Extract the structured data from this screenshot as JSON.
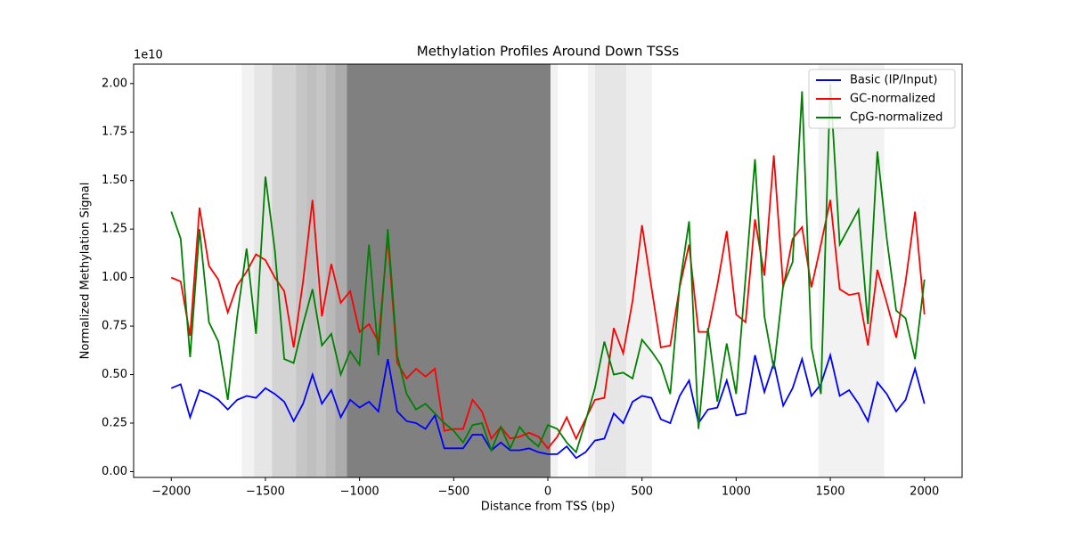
{
  "chart_data": {
    "type": "line",
    "title": "Methylation Profiles Around Down TSSs",
    "xlabel": "Distance from TSS (bp)",
    "ylabel": "Normalized Methylation Signal",
    "y_offset_label": "1e10",
    "x": [
      -2000,
      -1950,
      -1900,
      -1850,
      -1800,
      -1750,
      -1700,
      -1650,
      -1600,
      -1550,
      -1500,
      -1450,
      -1400,
      -1350,
      -1300,
      -1250,
      -1200,
      -1150,
      -1100,
      -1050,
      -1000,
      -950,
      -900,
      -850,
      -800,
      -750,
      -700,
      -650,
      -600,
      -550,
      -500,
      -450,
      -400,
      -350,
      -300,
      -250,
      -200,
      -150,
      -100,
      -50,
      0,
      50,
      100,
      150,
      200,
      250,
      300,
      350,
      400,
      450,
      500,
      550,
      600,
      650,
      700,
      750,
      800,
      850,
      900,
      950,
      1000,
      1050,
      1100,
      1150,
      1200,
      1250,
      1300,
      1350,
      1400,
      1450,
      1500,
      1550,
      1600,
      1650,
      1700,
      1750,
      1800,
      1850,
      1900,
      1950,
      2000
    ],
    "series": [
      {
        "name": "Basic (IP/Input)",
        "color": "#0000ff",
        "values": [
          0.43,
          0.45,
          0.28,
          0.42,
          0.4,
          0.37,
          0.32,
          0.37,
          0.39,
          0.38,
          0.43,
          0.4,
          0.36,
          0.26,
          0.35,
          0.5,
          0.35,
          0.42,
          0.28,
          0.37,
          0.33,
          0.36,
          0.31,
          0.58,
          0.31,
          0.26,
          0.25,
          0.22,
          0.29,
          0.12,
          0.12,
          0.12,
          0.19,
          0.19,
          0.11,
          0.15,
          0.11,
          0.11,
          0.12,
          0.1,
          0.09,
          0.09,
          0.13,
          0.07,
          0.1,
          0.16,
          0.17,
          0.3,
          0.25,
          0.36,
          0.39,
          0.38,
          0.27,
          0.25,
          0.39,
          0.47,
          0.25,
          0.32,
          0.33,
          0.47,
          0.29,
          0.3,
          0.6,
          0.41,
          0.56,
          0.34,
          0.43,
          0.58,
          0.39,
          0.45,
          0.6,
          0.39,
          0.42,
          0.35,
          0.26,
          0.46,
          0.4,
          0.31,
          0.37,
          0.53,
          0.35
        ]
      },
      {
        "name": "GC-normalized",
        "color": "#ff0000",
        "values": [
          1.0,
          0.98,
          0.7,
          1.36,
          1.06,
          0.99,
          0.82,
          0.96,
          1.03,
          1.12,
          1.09,
          1.0,
          0.93,
          0.64,
          0.98,
          1.4,
          0.8,
          1.07,
          0.87,
          0.93,
          0.72,
          0.76,
          0.67,
          1.21,
          0.56,
          0.48,
          0.53,
          0.49,
          0.53,
          0.21,
          0.22,
          0.22,
          0.37,
          0.31,
          0.17,
          0.23,
          0.17,
          0.18,
          0.2,
          0.18,
          0.12,
          0.18,
          0.28,
          0.17,
          0.27,
          0.37,
          0.38,
          0.74,
          0.61,
          0.88,
          1.27,
          0.95,
          0.64,
          0.65,
          0.95,
          1.17,
          0.72,
          0.72,
          0.96,
          1.24,
          0.81,
          0.77,
          1.3,
          1.01,
          1.63,
          0.95,
          1.2,
          1.26,
          0.95,
          1.17,
          1.4,
          0.94,
          0.91,
          0.92,
          0.65,
          1.04,
          0.87,
          0.69,
          0.98,
          1.34,
          0.81
        ]
      },
      {
        "name": "CpG-normalized",
        "color": "#008000",
        "values": [
          1.34,
          1.2,
          0.59,
          1.25,
          0.77,
          0.67,
          0.37,
          0.8,
          1.15,
          0.71,
          1.52,
          1.14,
          0.58,
          0.56,
          0.76,
          0.94,
          0.65,
          0.71,
          0.5,
          0.62,
          0.55,
          1.17,
          0.6,
          1.25,
          0.6,
          0.4,
          0.32,
          0.35,
          0.3,
          0.25,
          0.21,
          0.15,
          0.24,
          0.25,
          0.11,
          0.23,
          0.12,
          0.23,
          0.17,
          0.13,
          0.24,
          0.22,
          0.15,
          0.1,
          0.26,
          0.43,
          0.67,
          0.5,
          0.51,
          0.48,
          0.68,
          0.62,
          0.55,
          0.4,
          0.96,
          1.29,
          0.22,
          0.74,
          0.36,
          0.66,
          0.4,
          1.0,
          1.61,
          0.8,
          0.53,
          0.96,
          1.08,
          1.96,
          0.64,
          0.4,
          2.0,
          1.17,
          1.26,
          1.35,
          0.76,
          1.65,
          1.2,
          0.83,
          0.79,
          0.58,
          0.99
        ]
      }
    ],
    "shaded_regions": {
      "color": "#808080",
      "regions": [
        {
          "x": [
            -1626,
            -1560
          ],
          "alpha": 0.1
        },
        {
          "x": [
            -1560,
            -1465
          ],
          "alpha": 0.2
        },
        {
          "x": [
            -1465,
            -1338
          ],
          "alpha": 0.35
        },
        {
          "x": [
            -1338,
            -1280
          ],
          "alpha": 0.45
        },
        {
          "x": [
            -1280,
            -1230
          ],
          "alpha": 0.5
        },
        {
          "x": [
            -1230,
            -1180
          ],
          "alpha": 0.45
        },
        {
          "x": [
            -1180,
            -1130
          ],
          "alpha": 0.55
        },
        {
          "x": [
            -1130,
            -1068
          ],
          "alpha": 0.65
        },
        {
          "x": [
            -1068,
            14
          ],
          "alpha": 1.0
        },
        {
          "x": [
            14,
            52
          ],
          "alpha": 0.1
        },
        {
          "x": [
            213,
            251
          ],
          "alpha": 0.1
        },
        {
          "x": [
            251,
            416
          ],
          "alpha": 0.2
        },
        {
          "x": [
            416,
            553
          ],
          "alpha": 0.1
        },
        {
          "x": [
            1437,
            1787
          ],
          "alpha": 0.1
        }
      ]
    },
    "xlim": [
      -2200,
      2200
    ],
    "ylim": [
      -0.03,
      2.1
    ],
    "xticks": [
      {
        "value": -2000,
        "label": "−2000"
      },
      {
        "value": -1500,
        "label": "−1500"
      },
      {
        "value": -1000,
        "label": "−1000"
      },
      {
        "value": -500,
        "label": "−500"
      },
      0,
      500,
      1000,
      1500,
      2000
    ],
    "yticks": [
      {
        "value": 0,
        "label": "0.00"
      },
      {
        "value": 0.25,
        "label": "0.25"
      },
      {
        "value": 0.5,
        "label": "0.50"
      },
      {
        "value": 0.75,
        "label": "0.75"
      },
      {
        "value": 1,
        "label": "1.00"
      },
      {
        "value": 1.25,
        "label": "1.25"
      },
      {
        "value": 1.5,
        "label": "1.50"
      },
      {
        "value": 1.75,
        "label": "1.75"
      },
      {
        "value": 2,
        "label": "2.00"
      }
    ],
    "legend": "upper right"
  }
}
